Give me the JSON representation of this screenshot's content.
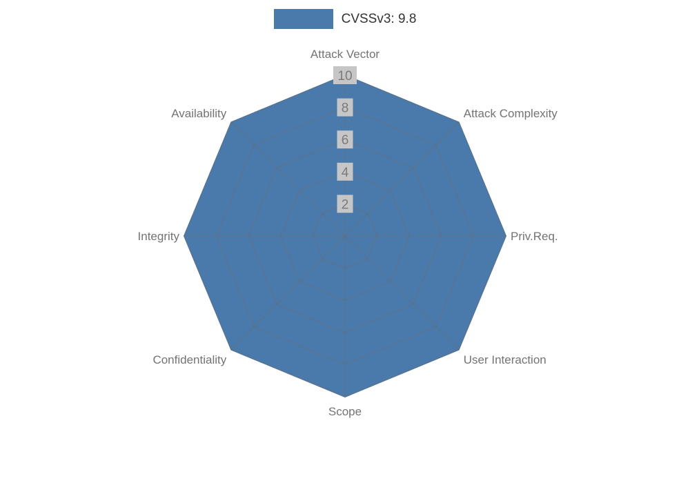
{
  "chart_data": {
    "type": "radar",
    "categories": [
      "Attack Vector",
      "Attack Complexity",
      "Priv.Req.",
      "User Interaction",
      "Scope",
      "Confidentiality",
      "Integrity",
      "Availability"
    ],
    "series": [
      {
        "name": "CVSSv3: 9.8",
        "values": [
          10,
          10,
          10,
          10,
          10,
          10,
          10,
          10
        ]
      }
    ],
    "radial_ticks": [
      2,
      4,
      6,
      8,
      10
    ],
    "radial_range": [
      0,
      10
    ],
    "grid": true,
    "legend_position": "top-center",
    "colors": {
      "fill": "#4a7aab",
      "grid": "#6b6b6b",
      "axis_label_text": "#737373",
      "tick_text": "#7a7a7a",
      "tick_bg": "#c6c6c6",
      "legend_text": "#333333",
      "background": "#ffffff"
    }
  },
  "legend": {
    "label": "CVSSv3: 9.8"
  }
}
